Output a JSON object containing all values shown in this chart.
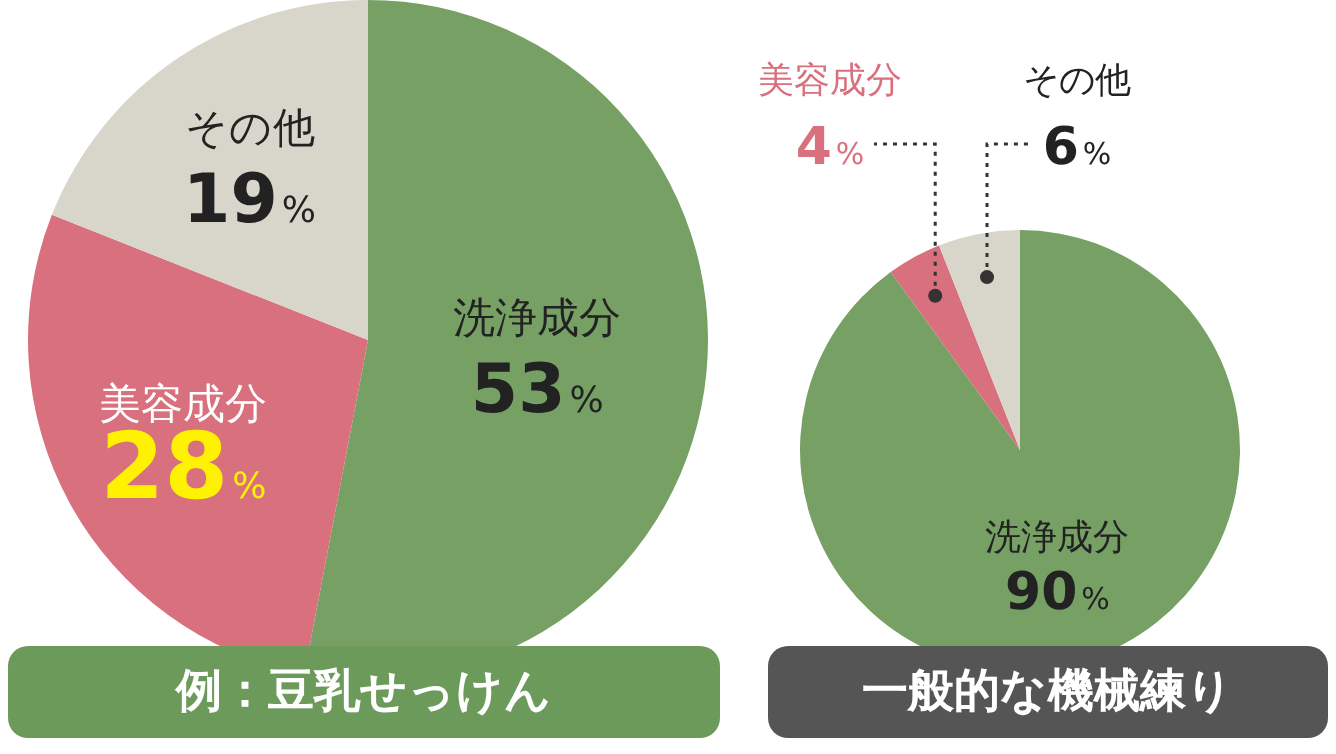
{
  "chart_data": [
    {
      "type": "pie",
      "title": "例：豆乳せっけん",
      "categories": [
        "洗浄成分",
        "美容成分",
        "その他"
      ],
      "values": [
        53,
        28,
        19
      ],
      "value_labels": [
        "53%",
        "28%",
        "19%"
      ],
      "colors": [
        "#76a064",
        "#d9707e",
        "#d8d5cb"
      ]
    },
    {
      "type": "pie",
      "title": "一般的な機械練り",
      "categories": [
        "洗浄成分",
        "美容成分",
        "その他"
      ],
      "values": [
        90,
        4,
        6
      ],
      "value_labels": [
        "90%",
        "4%",
        "6%"
      ],
      "colors": [
        "#76a064",
        "#d9707e",
        "#d8d5cb"
      ]
    }
  ]
}
